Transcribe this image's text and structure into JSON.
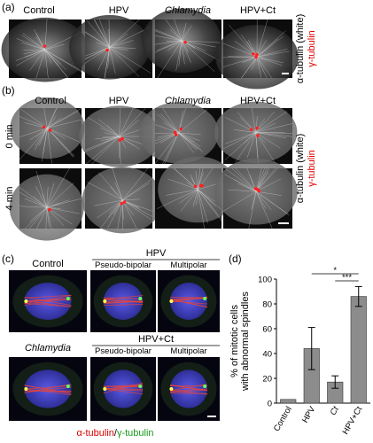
{
  "panel_a": {
    "label": "(a)",
    "columns": [
      "Control",
      "HPV",
      "Chlamydia",
      "HPV+Ct"
    ],
    "stain_white": "α-tubulin (white)",
    "stain_red": "γ-tubulin"
  },
  "panel_b": {
    "label": "(b)",
    "columns": [
      "Control",
      "HPV",
      "Chlamydia",
      "HPV+Ct"
    ],
    "rows": [
      "0 min",
      "4 min"
    ],
    "stain_white": "α-tubulin (white)",
    "stain_red": "γ-tubulin"
  },
  "panel_c": {
    "label": "(c)",
    "control": "Control",
    "hpv": "HPV",
    "chlamydia": "Chlamydia",
    "hpv_ct": "HPV+Ct",
    "subcolumns": [
      "Pseudo-bipolar",
      "Multipolar"
    ],
    "stain_red": "α-tubulin",
    "separator": "/",
    "stain_green": "γ-tubulin"
  },
  "chart_data": {
    "type": "bar",
    "label": "(d)",
    "ylabel": [
      "% of mitotic cells",
      "with abnormal spindles"
    ],
    "categories": [
      "Control",
      "HPV",
      "Ct",
      "HPV+Ct"
    ],
    "values": [
      3,
      44,
      17,
      86
    ],
    "errors": [
      0,
      17,
      5,
      8
    ],
    "color": "#8c8c8c",
    "ylim": [
      0,
      100
    ],
    "yticks": [
      0,
      20,
      40,
      60,
      80,
      100
    ],
    "annotations": [
      "*",
      "***"
    ]
  }
}
